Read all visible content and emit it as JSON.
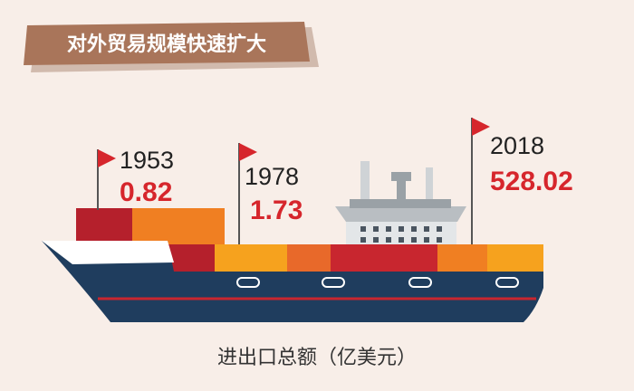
{
  "header": {
    "title": "对外贸易规模快速扩大"
  },
  "milestones": [
    {
      "year": "1953",
      "value": 0.82
    },
    {
      "year": "1978",
      "value": 1.73
    },
    {
      "year": "2018",
      "value": 528.02
    }
  ],
  "caption": "进出口总额（亿美元）"
}
